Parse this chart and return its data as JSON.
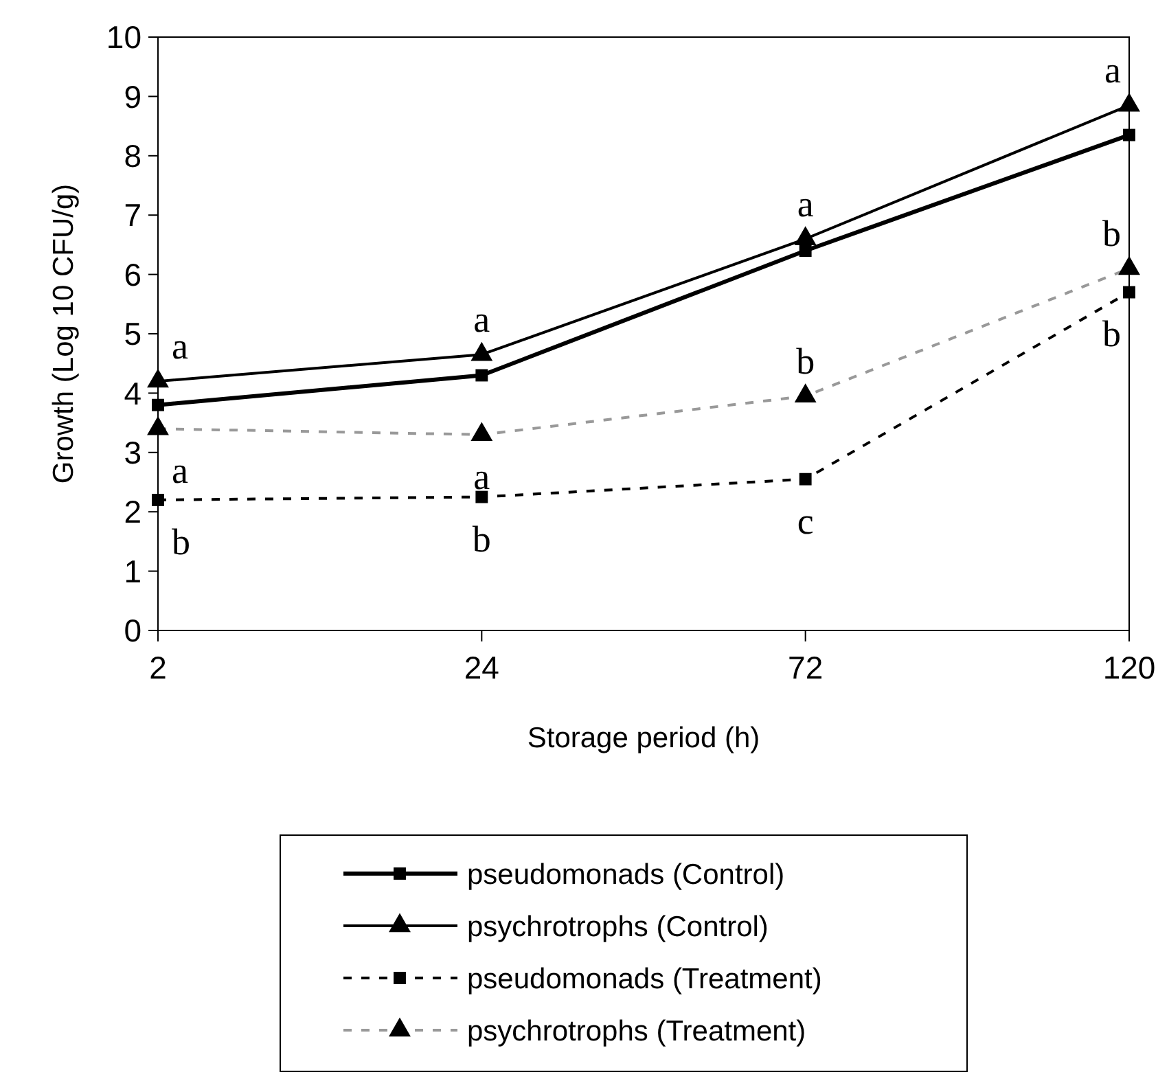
{
  "chart_data": {
    "type": "line",
    "xlabel": "Storage period (h)",
    "ylabel": "Growth (Log 10 CFU/g)",
    "categories": [
      "2",
      "24",
      "72",
      "120"
    ],
    "ylim": [
      0,
      10
    ],
    "yticks": [
      0,
      1,
      2,
      3,
      4,
      5,
      6,
      7,
      8,
      9,
      10
    ],
    "grid": false,
    "legend": "bottom",
    "series": [
      {
        "name": "pseudomonads (Control)",
        "color": "#000000",
        "marker": "square",
        "line_style": "solid",
        "values": [
          3.8,
          4.3,
          6.4,
          8.35
        ]
      },
      {
        "name": "psychrotrophs (Control)",
        "color": "#000000",
        "marker": "triangle",
        "line_style": "solid",
        "values": [
          4.2,
          4.65,
          6.6,
          8.85
        ]
      },
      {
        "name": "pseudomonads (Treatment)",
        "color": "#000000",
        "marker": "square",
        "line_style": "dashed",
        "values": [
          2.2,
          2.25,
          2.55,
          5.7
        ]
      },
      {
        "name": "psychrotrophs (Treatment)",
        "color": "#999999",
        "marker": "triangle",
        "line_style": "dashed",
        "values": [
          3.4,
          3.3,
          3.95,
          6.1
        ]
      }
    ],
    "annotations": [
      {
        "text": "a",
        "x": "2",
        "y": 4.2
      },
      {
        "text": "a",
        "x": "2",
        "y": 3.4
      },
      {
        "text": "b",
        "x": "2",
        "y": 2.2
      },
      {
        "text": "a",
        "x": "24",
        "y": 4.65
      },
      {
        "text": "a",
        "x": "24",
        "y": 3.3
      },
      {
        "text": "b",
        "x": "24",
        "y": 2.25
      },
      {
        "text": "a",
        "x": "72",
        "y": 6.6
      },
      {
        "text": "b",
        "x": "72",
        "y": 3.95
      },
      {
        "text": "c",
        "x": "72",
        "y": 2.55
      },
      {
        "text": "a",
        "x": "120",
        "y": 8.85
      },
      {
        "text": "b",
        "x": "120",
        "y": 6.1
      },
      {
        "text": "b",
        "x": "120",
        "y": 5.7
      }
    ]
  }
}
